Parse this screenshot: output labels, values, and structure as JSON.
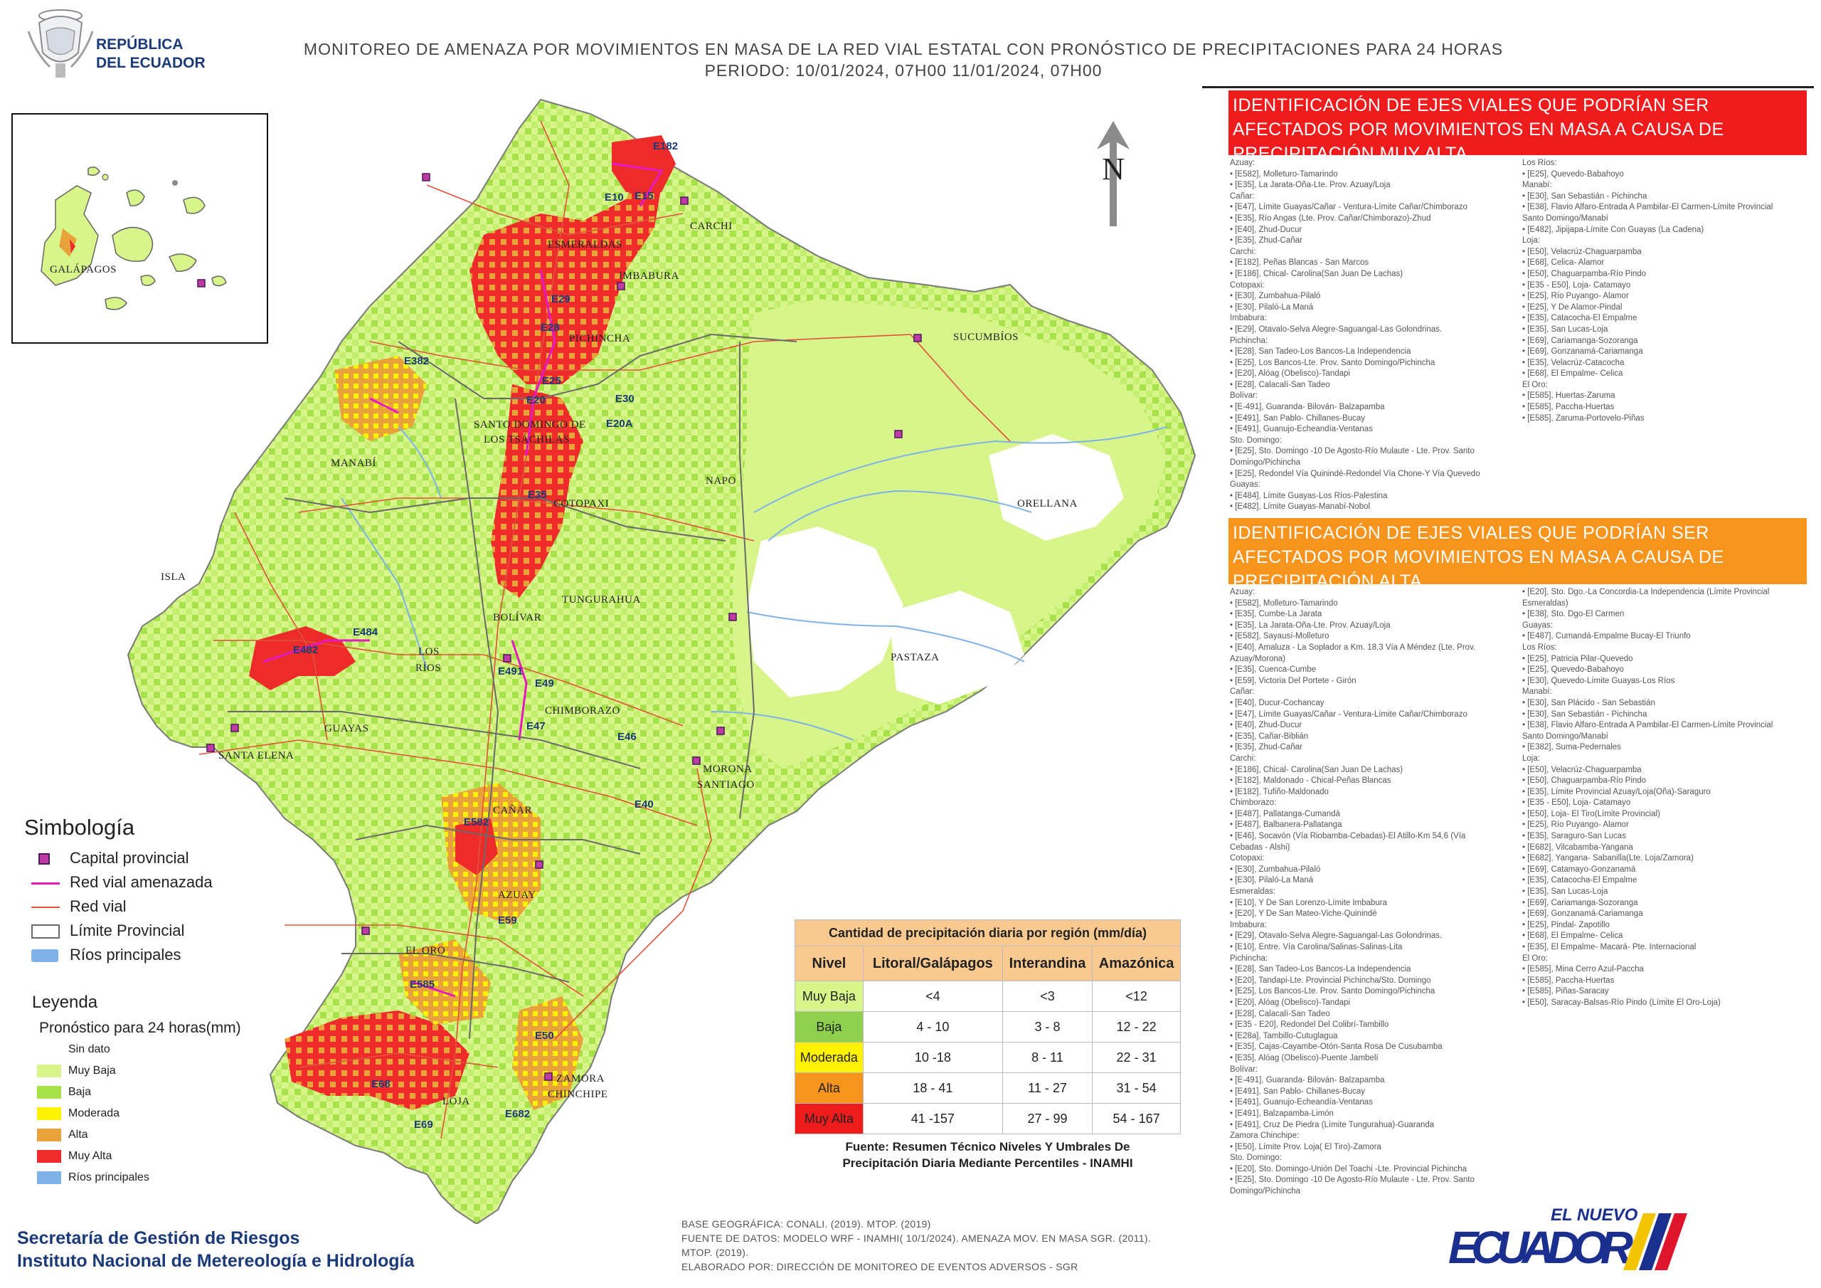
{
  "header": {
    "logo_text_line1": "REPÚBLICA",
    "logo_text_line2": "DEL ECUADOR",
    "title_line1": "MONITOREO DE AMENAZA POR MOVIMIENTOS EN MASA DE LA RED VIAL  ESTATAL  CON PRONÓSTICO  DE  PRECIPITACIONES PARA 24 HORAS",
    "title_line2": "PERIODO: 10/01/2024, 07H00 11/01/2024, 07H00"
  },
  "map": {
    "north_label": "N",
    "province_labels": [
      "ESMERALDAS",
      "CARCHI",
      "IMBABURA",
      "PICHINCHA",
      "SUCUMBÍOS",
      "MANABÍ",
      "SANTO DOMINGO DE",
      "LOS TSÁCHILAS",
      "NAPO",
      "ORELLANA",
      "COTOPAXI",
      "ISLA",
      "BOLÍVAR",
      "TUNGURAHUA",
      "LOS",
      "RÍOS",
      "PASTAZA",
      "CHIMBORAZO",
      "GUAYAS",
      "SANTA ELENA",
      "MORONA",
      "SANTIAGO",
      "CAÑAR",
      "AZUAY",
      "EL ORO",
      "LOJA",
      "ZAMORA",
      "CHINCHIPE",
      "GALÁPAGOS"
    ],
    "road_labels": [
      "E182",
      "E10",
      "E15",
      "E29",
      "E28",
      "E382",
      "E25",
      "E20",
      "E30",
      "E20A",
      "E35",
      "E484",
      "E482",
      "E491",
      "E49",
      "E47",
      "E46",
      "E40",
      "E582",
      "E59",
      "E585",
      "E50",
      "E68",
      "E69",
      "E682"
    ],
    "colors": {
      "muy_baja": "#d7f58a",
      "baja": "#a7e24b",
      "moderada": "#fff200",
      "alta": "#e9a23b",
      "muy_alta": "#ee2b2b",
      "rivers": "#7fb3e8",
      "road": "#e0533a",
      "threat_road": "#e619c3",
      "boundary": "#7a7a7a"
    }
  },
  "simbologia": {
    "title": "Simbología",
    "items": [
      "Capital provincial",
      "Red vial amenazada",
      "Red vial",
      "Límite Provincial",
      "Ríos principales"
    ]
  },
  "leyenda": {
    "title": "Leyenda",
    "subtitle": "Pronóstico para 24 horas(mm)",
    "items": [
      "Sin dato",
      "Muy Baja",
      "Baja",
      "Moderada",
      "Alta",
      "Muy Alta",
      "Ríos principales"
    ]
  },
  "panel_red": {
    "title": "IDENTIFICACIÓN DE EJES VIALES QUE PODRÍAN SER AFECTADOS POR MOVIMIENTOS EN MASA A CAUSA DE PRECIPITACIÓN MUY ALTA",
    "col1": [
      "Azuay:",
      "• [E582], Molleturo-Tamarindo",
      "• [E35], La Jarata-Oña-Lte. Prov. Azuay/Loja",
      "Cañar:",
      "• [E47], Límite Guayas/Cañar - Ventura-Límite Cañar/Chimborazo",
      "• [E35], Río Angas (Lte. Prov. Cañar/Chimborazo)-Zhud",
      "• [E40], Zhud-Ducur",
      "• [E35], Zhud-Cañar",
      "Carchi:",
      "• [E182], Peñas Blancas - San Marcos",
      "• [E186], Chical- Carolina(San Juan De Lachas)",
      "Cotopaxi:",
      "• [E30], Zumbahua-Pilaló",
      "• [E30], Pilaló-La Maná",
      "Imbabura:",
      "• [E29], Otavalo-Selva Alegre-Saguangal-Las Golondrinas.",
      "Pichincha:",
      "• [E28], San Tadeo-Los Bancos-La Independencia",
      "• [E25], Los Bancos-Lte. Prov. Santo Domingo/Pichincha",
      "• [E20], Alóag (Obelisco)-Tandapi",
      "• [E28], Calacalí-San Tadeo",
      "Bolívar:",
      "• [E-491], Guaranda- Bilován- Balzapamba",
      "• [E491], San Pablo- Chillanes-Bucay",
      "• [E491], Guanujo-Echeandía-Ventanas",
      "Sto. Domingo:",
      "• [E25], Sto. Domingo -10 De Agosto-Río Mulaute - Lte. Prov. Santo",
      "Domingo/Pichincha",
      "• [E25], Redondel Vía Quinindé-Redondel Vía Chone-Y Vía Quevedo",
      "Guayas:",
      "• [E484], Límite Guayas-Los Ríos-Palestina",
      "• [E482], Límite Guayas-Manabí-Nobol"
    ],
    "col2": [
      "Los Ríos:",
      "• [E25], Quevedo-Babahoyo",
      "Manabí:",
      "• [E30], San Sebastián - Pichincha",
      "• [E38], Flavio Alfaro-Entrada A Pambilar-El Carmen-Límite Provincial",
      "Santo Domingo/Manabí",
      "• [E482], Jipijapa-Límite Con Guayas (La Cadena)",
      "Loja:",
      "• [E50], Velacrúz-Chaguarpamba",
      "• [E68], Celica- Alamor",
      "• [E50], Chaguarpamba-Río Pindo",
      "• [E35 - E50], Loja- Catamayo",
      "• [E25], Río Puyango- Alamor",
      "• [E25], Y De Alamor-Pindal",
      "• [E35], Catacocha-El Empalme",
      "• [E35], San Lucas-Loja",
      "• [E69], Cariamanga-Sozoranga",
      "• [E69], Gonzanamá-Cariamanga",
      "• [E35], Velacrúz-Catacocha",
      "• [E68], El Empalme- Celica",
      "El Oro:",
      "• [E585], Huertas-Zaruma",
      "• [E585], Paccha-Huertas",
      "• [E585], Zaruma-Portovelo-Piñas"
    ]
  },
  "panel_orange": {
    "title": "IDENTIFICACIÓN DE EJES VIALES QUE PODRÍAN SER AFECTADOS POR MOVIMIENTOS EN MASA A CAUSA DE PRECIPITACIÓN  ALTA",
    "col1": [
      "Azuay:",
      "• [E582], Molleturo-Tamarindo",
      "• [E35], Cumbe-La Jarata",
      "• [E35], La Jarata-Oña-Lte. Prov. Azuay/Loja",
      "• [E582], Sayausí-Molleturo",
      "• [E40], Amaluza - La Soplador a Km. 18,3 Vía A Méndez (Lte. Prov.",
      "Azuay/Morona)",
      "• [E35], Cuenca-Cumbe",
      "• [E59], Victoria Del Portete - Girón",
      "Cañar:",
      "• [E40], Ducur-Cochancay",
      "• [E47], Límite Guayas/Cañar - Ventura-Límite Cañar/Chimborazo",
      "• [E40], Zhud-Ducur",
      "• [E35], Cañar-Biblián",
      "• [E35], Zhud-Cañar",
      "Carchi:",
      "• [E186], Chical- Carolina(San Juan De Lachas)",
      "• [E182], Maldonado - Chical-Peñas Blancas",
      "• [E182], Tufiño-Maldonado",
      "Chimborazo:",
      "• [E487], Pallatanga-Cumandá",
      "• [E487], Balbanera-Pallatanga",
      "• [E46], Socavón (Vía Riobamba-Cebadas)-El Atillo-Km 54,6 (Vía",
      "Cebadas - Alshi)",
      "Cotopaxi:",
      "• [E30], Zumbahua-Pilaló",
      "• [E30], Pilaló-La Maná",
      "Esmeraldas:",
      "• [E10], Y De San Lorenzo-Límite Imbabura",
      "• [E20], Y De San Mateo-Viche-Quinindé",
      "Imbabura:",
      "• [E29], Otavalo-Selva Alegre-Saguangal-Las Golondrinas.",
      "• [E10], Entre. Vía Carolina/Salinas-Salinas-Lita",
      "Pichincha:",
      "• [E28], San Tadeo-Los Bancos-La Independencia",
      "• [E20], Tandapi-Lte. Provincial Pichincha/Sto. Domingo",
      "• [E25], Los Bancos-Lte. Prov. Santo Domingo/Pichincha",
      "• [E20], Alóag (Obelisco)-Tandapi",
      "• [E28], Calacalí-San Tadeo",
      "• [E35 - E20], Redondel Del Colibrí-Tambillo",
      "• [E28a], Tambillo-Cutuglagua",
      "• [E35], Cajas-Cayambe-Otón-Santa Rosa De Cusubamba",
      "• [E35], Alóag (Obelisco)-Puente Jambelí",
      "Bolívar:",
      "• [E-491], Guaranda- Bilován- Balzapamba",
      "• [E491], San Pablo- Chillanes-Bucay",
      "• [E491], Guanujo-Echeandía-Ventanas",
      "• [E491], Balzapamba-Limón",
      "• [E491], Cruz De Piedra (Límite Tungurahua)-Guaranda",
      "Zamora Chinchipe:",
      "• [E50], Límite Prov. Loja( El Tiro)-Zamora",
      "Sto. Domingo:",
      "• [E20], Sto. Domingo-Unión Del Toachi -Lte. Provincial Pichincha",
      "• [E25], Sto. Domingo -10 De Agosto-Río Mulaute - Lte. Prov. Santo",
      "Domingo/Pichincha"
    ],
    "col2": [
      "• [E20], Sto. Dgo.-La Concordia-La Independencia (Límite Provincial",
      "Esmeraldas)",
      "• [E38], Sto. Dgo-El Carmen",
      "Guayas:",
      "• [E487], Cumandá-Empalme Bucay-El Triunfo",
      "Los Ríos:",
      "• [E25], Patricia Pilar-Quevedo",
      "• [E25], Quevedo-Babahoyo",
      "• [E30], Quevedo-Límite Guayas-Los Ríos",
      "Manabí:",
      "• [E30], San Plácido - San Sebastián",
      "• [E30], San Sebastián - Pichincha",
      "• [E38], Flavio Alfaro-Entrada A Pambilar-El Carmen-Límite Provincial",
      "Santo Domingo/Manabí",
      "• [E382], Suma-Pedernales",
      "Loja:",
      "• [E50], Velacrúz-Chaguarpamba",
      "• [E50], Chaguarpamba-Río Pindo",
      "• [E35], Límite Provincial Azuay/Loja(Oña)-Saraguro",
      "• [E35 - E50], Loja- Catamayo",
      "• [E50], Loja- El Tiro(Límite Provincial)",
      "• [E25], Río Puyango- Alamor",
      "• [E35], Saraguro-San Lucas",
      "• [E682], Vilcabamba-Yangana",
      "• [E682], Yangana- Sabanilla(Lte. Loja/Zamora)",
      "• [E69], Catamayo-Gonzanamá",
      "• [E35], Catacocha-El Empalme",
      "• [E35], San Lucas-Loja",
      "• [E69], Cariamanga-Sozoranga",
      "• [E69], Gonzanamá-Cariamanga",
      "• [E25], Pindal- Zapotillo",
      "• [E68], El Empalme- Celica",
      "• [E35], El Empalme- Macará- Pte. Internacional",
      "El Oro:",
      "• [E585], Mina Cerro Azul-Paccha",
      "• [E585], Paccha-Huertas",
      "• [E585], Piñas-Saracay",
      "• [E50], Saracay-Balsas-Río Pindo (Límite El Oro-Loja)"
    ]
  },
  "precip_table": {
    "title": "Cantidad de precipitación diaria por región (mm/día)",
    "headers": [
      "Nivel",
      "Litoral/Galápagos",
      "Interandina",
      "Amazónica"
    ],
    "rows": [
      {
        "nivel": "Muy Baja",
        "litoral": "<4",
        "interandina": "<3",
        "amazonica": "<12",
        "color": "#d7f58a"
      },
      {
        "nivel": "Baja",
        "litoral": "4 - 10",
        "interandina": "3 - 8",
        "amazonica": "12 - 22",
        "color": "#8fd14f"
      },
      {
        "nivel": "Moderada",
        "litoral": "10 -18",
        "interandina": "8 - 11",
        "amazonica": "22 - 31",
        "color": "#fff200"
      },
      {
        "nivel": "Alta",
        "litoral": "18 - 41",
        "interandina": "11 - 27",
        "amazonica": "31 - 54",
        "color": "#f7941d"
      },
      {
        "nivel": "Muy Alta",
        "litoral": "41 -157",
        "interandina": "27 - 99",
        "amazonica": "54 - 167",
        "color": "#ee1c1c"
      }
    ],
    "note_line1": "Fuente: Resumen Técnico Niveles Y Umbrales De",
    "note_line2": "Precipitación Diaria Mediante Percentiles - INAMHI"
  },
  "footer": {
    "org_line1": "Secretaría de Gestión de Riesgos",
    "org_line2": "Instituto Nacional de Metereología e Hidrología",
    "source_line1": "BASE GEOGRÁFICA: CONALI. (2019). MTOP. (2019)",
    "source_line2": "FUENTE DE DATOS: MODELO WRF - INAMHI( 10/1/2024).  AMENAZA MOV. EN MASA SGR. (2011).",
    "source_line3": "MTOP. (2019).",
    "source_line4": "ELABORADO POR: DIRECCIÓN DE MONITOREO DE EVENTOS ADVERSOS - SGR",
    "brand_small": "EL NUEVO",
    "brand_big": "ECUADOR"
  }
}
